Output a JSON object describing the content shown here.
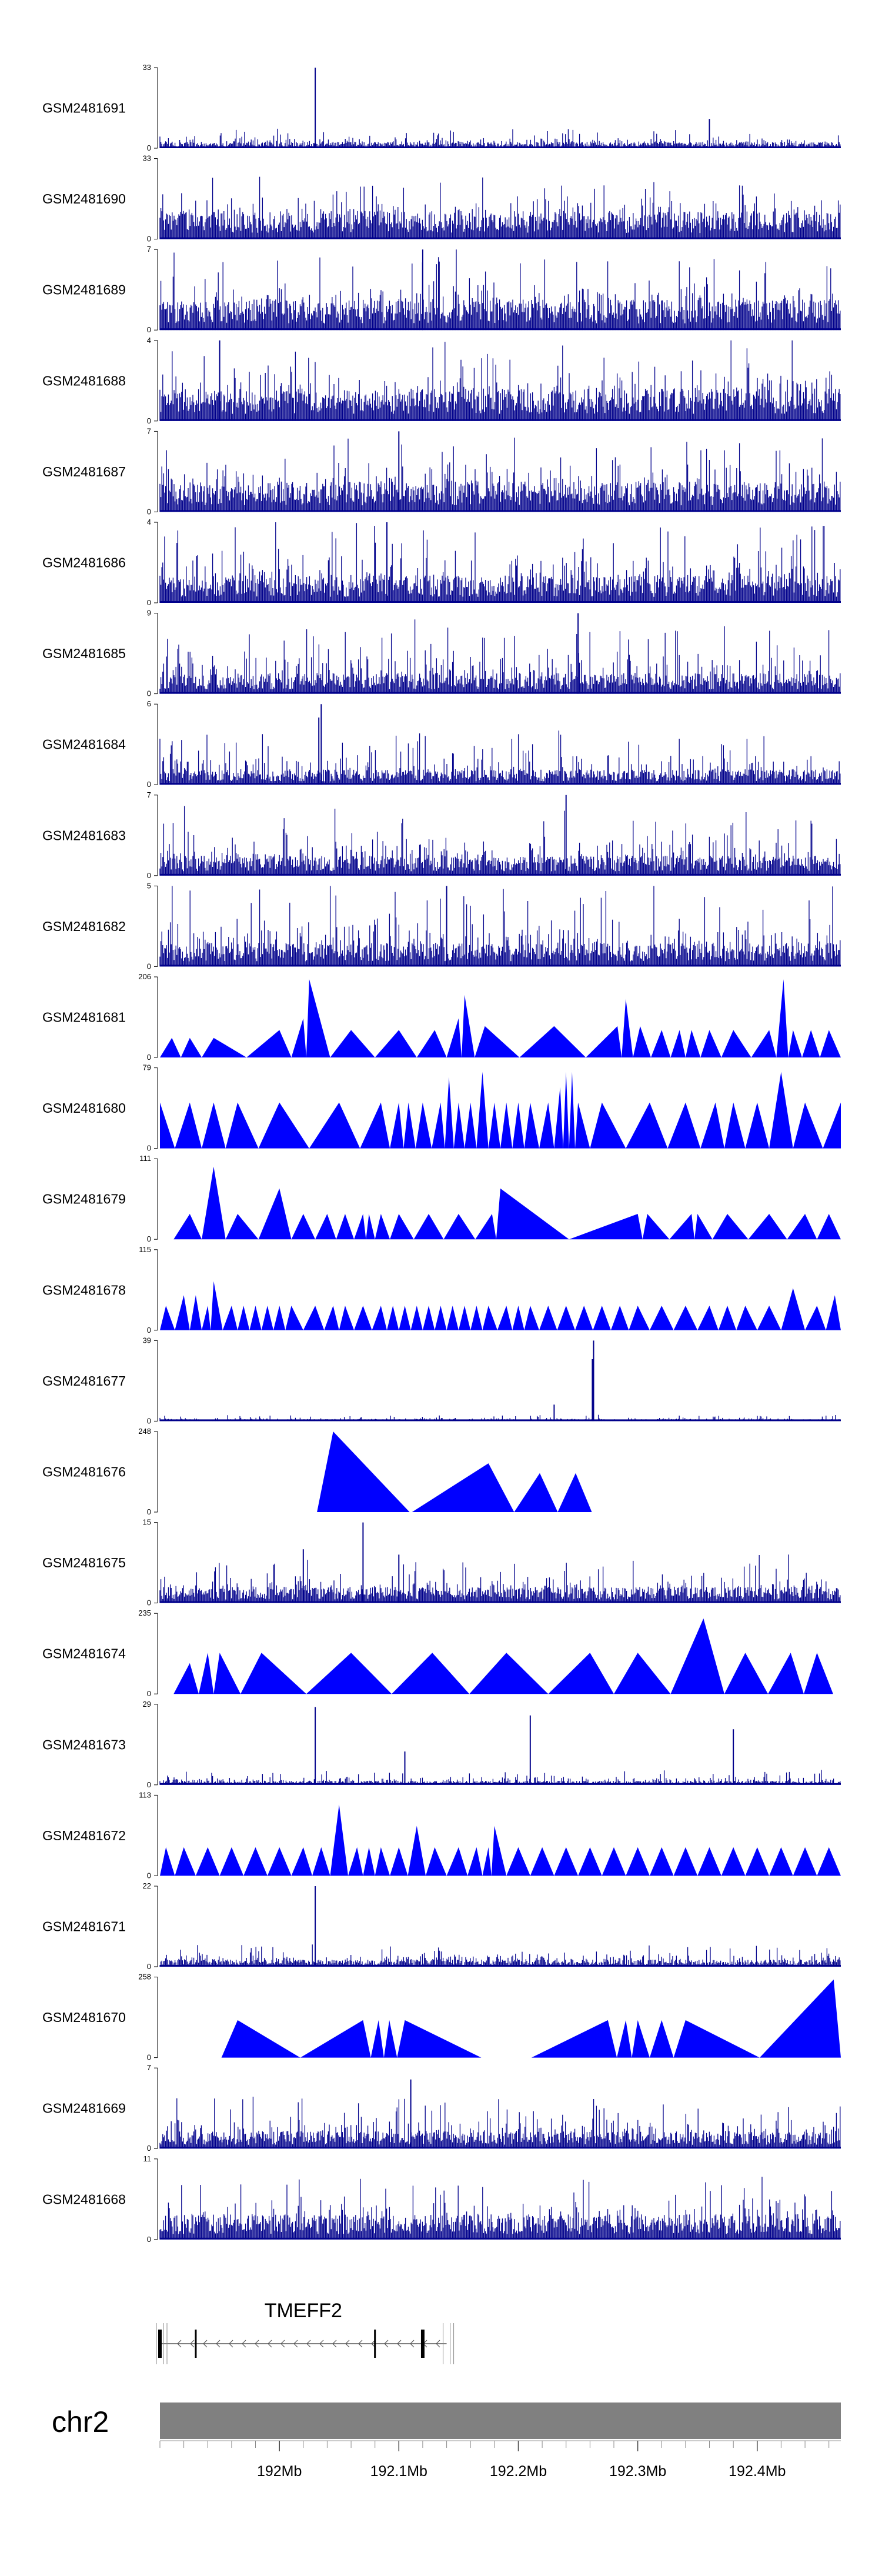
{
  "chart_data": {
    "type": "area",
    "title": "",
    "x_unit": "Mb",
    "xlim": [
      191.9,
      192.47
    ],
    "tracks": [
      {
        "name": "GSM2481691",
        "ymax": "33",
        "ymin": "0",
        "style": "bars",
        "base": 2.2,
        "spread": 3.5,
        "spikes": [
          [
            192.03,
            33
          ],
          [
            192.36,
            12
          ]
        ]
      },
      {
        "name": "GSM2481690",
        "ymax": "33",
        "ymin": "0",
        "style": "bars",
        "base": 10,
        "spread": 10,
        "spikes": []
      },
      {
        "name": "GSM2481689",
        "ymax": "7",
        "ymin": "0",
        "style": "bars",
        "base": 2.3,
        "spread": 3.2,
        "spikes": [
          [
            192.12,
            7
          ]
        ]
      },
      {
        "name": "GSM2481688",
        "ymax": "4",
        "ymin": "0",
        "style": "bars",
        "base": 1.4,
        "spread": 1.8,
        "spikes": [
          [
            191.95,
            4
          ]
        ]
      },
      {
        "name": "GSM2481687",
        "ymax": "7",
        "ymin": "0",
        "style": "bars",
        "base": 2.3,
        "spread": 3.0,
        "spikes": [
          [
            192.1,
            7
          ]
        ]
      },
      {
        "name": "GSM2481686",
        "ymax": "4",
        "ymin": "0",
        "style": "bars",
        "base": 1.2,
        "spread": 1.8,
        "spikes": [
          [
            192.09,
            4
          ]
        ]
      },
      {
        "name": "GSM2481685",
        "ymax": "9",
        "ymin": "0",
        "style": "bars",
        "base": 2.0,
        "spread": 4.0,
        "spikes": [
          [
            192.25,
            9
          ]
        ]
      },
      {
        "name": "GSM2481684",
        "ymax": "6",
        "ymin": "0",
        "style": "bars",
        "base": 1.0,
        "spread": 2.0,
        "spikes": [
          [
            192.035,
            6
          ],
          [
            192.033,
            5
          ]
        ]
      },
      {
        "name": "GSM2481683",
        "ymax": "7",
        "ymin": "0",
        "style": "bars",
        "base": 1.5,
        "spread": 2.8,
        "spikes": [
          [
            192.24,
            7
          ]
        ]
      },
      {
        "name": "GSM2481682",
        "ymax": "5",
        "ymin": "0",
        "style": "bars",
        "base": 1.3,
        "spread": 2.4,
        "spikes": [
          [
            192.14,
            5
          ]
        ]
      },
      {
        "name": "GSM2481681",
        "ymax": "206",
        "ymin": "0",
        "style": "peaks",
        "peaks": [
          [
            191.91,
            50
          ],
          [
            191.925,
            50
          ],
          [
            191.945,
            50
          ],
          [
            192.0,
            70
          ],
          [
            192.02,
            100
          ],
          [
            192.025,
            200
          ],
          [
            192.06,
            70
          ],
          [
            192.1,
            70
          ],
          [
            192.13,
            70
          ],
          [
            192.15,
            100
          ],
          [
            192.155,
            160
          ],
          [
            192.172,
            80
          ],
          [
            192.23,
            80
          ],
          [
            192.283,
            80
          ],
          [
            192.29,
            150
          ],
          [
            192.302,
            80
          ],
          [
            192.32,
            70
          ],
          [
            192.335,
            70
          ],
          [
            192.345,
            70
          ],
          [
            192.36,
            70
          ],
          [
            192.38,
            70
          ],
          [
            192.41,
            70
          ],
          [
            192.422,
            200
          ],
          [
            192.43,
            70
          ],
          [
            192.445,
            70
          ],
          [
            192.46,
            70
          ]
        ]
      },
      {
        "name": "GSM2481680",
        "ymax": "79",
        "ymin": "0",
        "style": "peaks",
        "peaks": [
          [
            191.9,
            45
          ],
          [
            191.925,
            45
          ],
          [
            191.945,
            45
          ],
          [
            191.965,
            45
          ],
          [
            192.0,
            45
          ],
          [
            192.05,
            45
          ],
          [
            192.085,
            45
          ],
          [
            192.1,
            45
          ],
          [
            192.108,
            45
          ],
          [
            192.12,
            45
          ],
          [
            192.135,
            45
          ],
          [
            192.142,
            70
          ],
          [
            192.15,
            45
          ],
          [
            192.16,
            45
          ],
          [
            192.17,
            75
          ],
          [
            192.18,
            45
          ],
          [
            192.19,
            45
          ],
          [
            192.2,
            45
          ],
          [
            192.21,
            45
          ],
          [
            192.225,
            45
          ],
          [
            192.235,
            60
          ],
          [
            192.24,
            75
          ],
          [
            192.245,
            75
          ],
          [
            192.25,
            45
          ],
          [
            192.27,
            45
          ],
          [
            192.31,
            45
          ],
          [
            192.34,
            45
          ],
          [
            192.365,
            45
          ],
          [
            192.38,
            45
          ],
          [
            192.4,
            45
          ],
          [
            192.42,
            75
          ],
          [
            192.44,
            45
          ],
          [
            192.47,
            45
          ]
        ]
      },
      {
        "name": "GSM2481679",
        "ymax": "111",
        "ymin": "0",
        "style": "peaks",
        "peaks": [
          [
            191.925,
            35
          ],
          [
            191.945,
            100
          ],
          [
            191.965,
            35
          ],
          [
            192.0,
            70
          ],
          [
            192.02,
            35
          ],
          [
            192.04,
            35
          ],
          [
            192.055,
            35
          ],
          [
            192.07,
            35
          ],
          [
            192.075,
            35
          ],
          [
            192.085,
            35
          ],
          [
            192.1,
            35
          ],
          [
            192.125,
            35
          ],
          [
            192.15,
            35
          ],
          [
            192.178,
            35
          ],
          [
            192.185,
            70
          ],
          [
            192.3,
            35
          ],
          [
            192.308,
            35
          ],
          [
            192.345,
            35
          ],
          [
            192.35,
            35
          ],
          [
            192.375,
            35
          ],
          [
            192.41,
            35
          ],
          [
            192.44,
            35
          ],
          [
            192.46,
            35
          ]
        ]
      },
      {
        "name": "GSM2481678",
        "ymax": "115",
        "ymin": "0",
        "style": "peaks",
        "peaks": [
          [
            191.905,
            35
          ],
          [
            191.92,
            50
          ],
          [
            191.93,
            50
          ],
          [
            191.94,
            35
          ],
          [
            191.945,
            70
          ],
          [
            191.96,
            35
          ],
          [
            191.97,
            35
          ],
          [
            191.98,
            35
          ],
          [
            191.99,
            35
          ],
          [
            192.0,
            35
          ],
          [
            192.01,
            35
          ],
          [
            192.03,
            35
          ],
          [
            192.045,
            35
          ],
          [
            192.055,
            35
          ],
          [
            192.07,
            35
          ],
          [
            192.085,
            35
          ],
          [
            192.095,
            35
          ],
          [
            192.105,
            35
          ],
          [
            192.115,
            35
          ],
          [
            192.125,
            35
          ],
          [
            192.135,
            35
          ],
          [
            192.145,
            35
          ],
          [
            192.155,
            35
          ],
          [
            192.165,
            35
          ],
          [
            192.175,
            35
          ],
          [
            192.19,
            35
          ],
          [
            192.2,
            35
          ],
          [
            192.21,
            35
          ],
          [
            192.225,
            35
          ],
          [
            192.24,
            35
          ],
          [
            192.255,
            35
          ],
          [
            192.27,
            35
          ],
          [
            192.285,
            35
          ],
          [
            192.3,
            35
          ],
          [
            192.32,
            35
          ],
          [
            192.34,
            35
          ],
          [
            192.36,
            35
          ],
          [
            192.375,
            35
          ],
          [
            192.39,
            35
          ],
          [
            192.41,
            35
          ],
          [
            192.43,
            60
          ],
          [
            192.45,
            35
          ],
          [
            192.465,
            50
          ]
        ]
      },
      {
        "name": "GSM2481677",
        "ymax": "39",
        "ymin": "0",
        "style": "bars",
        "base": 0.8,
        "spread": 1.5,
        "spikes": [
          [
            192.263,
            39
          ],
          [
            192.262,
            30
          ],
          [
            192.23,
            8
          ]
        ]
      },
      {
        "name": "GSM2481676",
        "ymax": "248",
        "ymin": "0",
        "style": "peaks",
        "peaks": [
          [
            192.045,
            248
          ],
          [
            192.175,
            150
          ],
          [
            192.218,
            120
          ],
          [
            192.248,
            120
          ]
        ]
      },
      {
        "name": "GSM2481675",
        "ymax": "15",
        "ymin": "0",
        "style": "bars",
        "base": 2.6,
        "spread": 4.0,
        "spikes": [
          [
            192.07,
            15
          ],
          [
            192.02,
            10
          ],
          [
            192.1,
            9
          ]
        ]
      },
      {
        "name": "GSM2481674",
        "ymax": "235",
        "ymin": "0",
        "style": "peaks",
        "peaks": [
          [
            191.925,
            90
          ],
          [
            191.94,
            120
          ],
          [
            191.95,
            120
          ],
          [
            191.985,
            120
          ],
          [
            192.06,
            120
          ],
          [
            192.128,
            120
          ],
          [
            192.19,
            120
          ],
          [
            192.26,
            120
          ],
          [
            192.3,
            120
          ],
          [
            192.355,
            220
          ],
          [
            192.39,
            120
          ],
          [
            192.428,
            120
          ],
          [
            192.45,
            120
          ]
        ]
      },
      {
        "name": "GSM2481673",
        "ymax": "29",
        "ymin": "0",
        "style": "bars",
        "base": 1.3,
        "spread": 2.5,
        "spikes": [
          [
            192.03,
            28
          ],
          [
            192.21,
            25
          ],
          [
            192.38,
            20
          ],
          [
            192.105,
            12
          ]
        ]
      },
      {
        "name": "GSM2481672",
        "ymax": "113",
        "ymin": "0",
        "style": "peaks",
        "peaks": [
          [
            191.905,
            40
          ],
          [
            191.92,
            40
          ],
          [
            191.94,
            40
          ],
          [
            191.96,
            40
          ],
          [
            191.98,
            40
          ],
          [
            192.0,
            40
          ],
          [
            192.02,
            40
          ],
          [
            192.035,
            40
          ],
          [
            192.05,
            100
          ],
          [
            192.065,
            40
          ],
          [
            192.075,
            40
          ],
          [
            192.085,
            40
          ],
          [
            192.1,
            40
          ],
          [
            192.115,
            70
          ],
          [
            192.13,
            40
          ],
          [
            192.15,
            40
          ],
          [
            192.165,
            40
          ],
          [
            192.175,
            40
          ],
          [
            192.18,
            70
          ],
          [
            192.2,
            40
          ],
          [
            192.22,
            40
          ],
          [
            192.24,
            40
          ],
          [
            192.26,
            40
          ],
          [
            192.28,
            40
          ],
          [
            192.3,
            40
          ],
          [
            192.32,
            40
          ],
          [
            192.34,
            40
          ],
          [
            192.36,
            40
          ],
          [
            192.38,
            40
          ],
          [
            192.4,
            40
          ],
          [
            192.42,
            40
          ],
          [
            192.44,
            40
          ],
          [
            192.46,
            40
          ]
        ]
      },
      {
        "name": "GSM2481671",
        "ymax": "22",
        "ymin": "0",
        "style": "bars",
        "base": 1.7,
        "spread": 3.0,
        "spikes": [
          [
            192.03,
            22
          ]
        ]
      },
      {
        "name": "GSM2481670",
        "ymax": "258",
        "ymin": "0",
        "style": "peaks",
        "peaks": [
          [
            191.965,
            120
          ],
          [
            192.07,
            120
          ],
          [
            192.083,
            120
          ],
          [
            192.092,
            120
          ],
          [
            192.105,
            120
          ],
          [
            192.275,
            120
          ],
          [
            192.29,
            120
          ],
          [
            192.3,
            120
          ],
          [
            192.32,
            120
          ],
          [
            192.34,
            120
          ],
          [
            192.464,
            250
          ]
        ]
      },
      {
        "name": "GSM2481669",
        "ymax": "7",
        "ymin": "0",
        "style": "bars",
        "base": 1.3,
        "spread": 2.3,
        "spikes": [
          [
            192.11,
            6
          ]
        ]
      },
      {
        "name": "GSM2481668",
        "ymax": "11",
        "ymin": "0",
        "style": "bars",
        "base": 3.0,
        "spread": 4.0,
        "spikes": []
      }
    ],
    "gene": {
      "name": "TMEFF2",
      "start": 191.9,
      "end": 192.14,
      "strand": "-",
      "exons": [
        191.9,
        191.93,
        192.08,
        192.12
      ]
    },
    "chromosome": "chr2",
    "axis_ticks": [
      {
        "value": 192.0,
        "label": "192Mb"
      },
      {
        "value": 192.1,
        "label": "192.1Mb"
      },
      {
        "value": 192.2,
        "label": "192.2Mb"
      },
      {
        "value": 192.3,
        "label": "192.3Mb"
      },
      {
        "value": 192.4,
        "label": "192.4Mb"
      }
    ],
    "colors": {
      "bars": "#00008B",
      "peaks": "#0000FF",
      "axis": "#000000",
      "chrom_band": "#808080"
    }
  }
}
